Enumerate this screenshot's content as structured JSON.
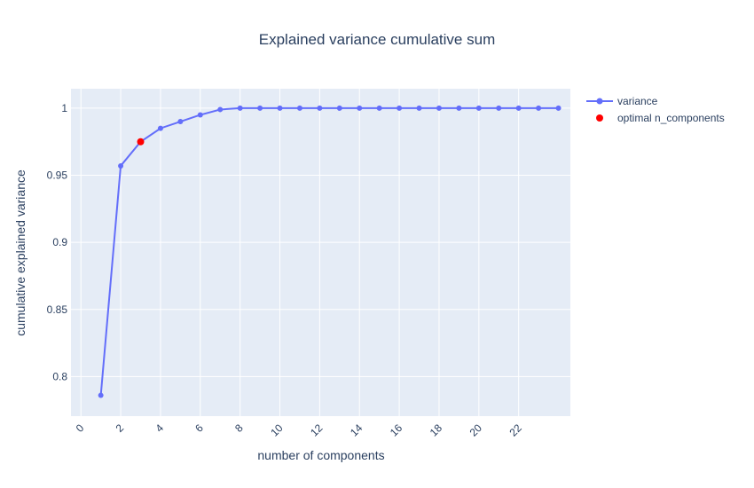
{
  "chart_data": {
    "type": "line",
    "title": "Explained variance cumulative sum",
    "xlabel": "number of components",
    "ylabel": "cumulative explained variance",
    "xlim": [
      -0.5,
      24.6
    ],
    "ylim": [
      0.7705,
      1.0145
    ],
    "x_ticks": [
      0,
      2,
      4,
      6,
      8,
      10,
      12,
      14,
      16,
      18,
      20,
      22
    ],
    "x_tick_labels": [
      "0",
      "2",
      "4",
      "6",
      "8",
      "10",
      "12",
      "14",
      "16",
      "18",
      "20",
      "22"
    ],
    "y_ticks": [
      0.8,
      0.85,
      0.9,
      0.95,
      1
    ],
    "y_tick_labels": [
      "0.8",
      "0.85",
      "0.9",
      "0.95",
      "1"
    ],
    "grid": true,
    "legend_position": "top-right",
    "series": [
      {
        "name": "variance",
        "mode": "lines+markers",
        "color": "#636efa",
        "x": [
          1,
          2,
          3,
          4,
          5,
          6,
          7,
          8,
          9,
          10,
          11,
          12,
          13,
          14,
          15,
          16,
          17,
          18,
          19,
          20,
          21,
          22,
          23,
          24
        ],
        "y": [
          0.786,
          0.957,
          0.975,
          0.985,
          0.99,
          0.995,
          0.999,
          1.0,
          1.0,
          1.0,
          1.0,
          1.0,
          1.0,
          1.0,
          1.0,
          1.0,
          1.0,
          1.0,
          1.0,
          1.0,
          1.0,
          1.0,
          1.0,
          1.0
        ]
      },
      {
        "name": "optimal n_components",
        "mode": "markers",
        "color": "#ff0000",
        "x": [
          3
        ],
        "y": [
          0.975
        ]
      }
    ]
  },
  "colors": {
    "plot_background": "#e5ecf6",
    "grid": "#ffffff",
    "text": "#2a3f5f"
  }
}
